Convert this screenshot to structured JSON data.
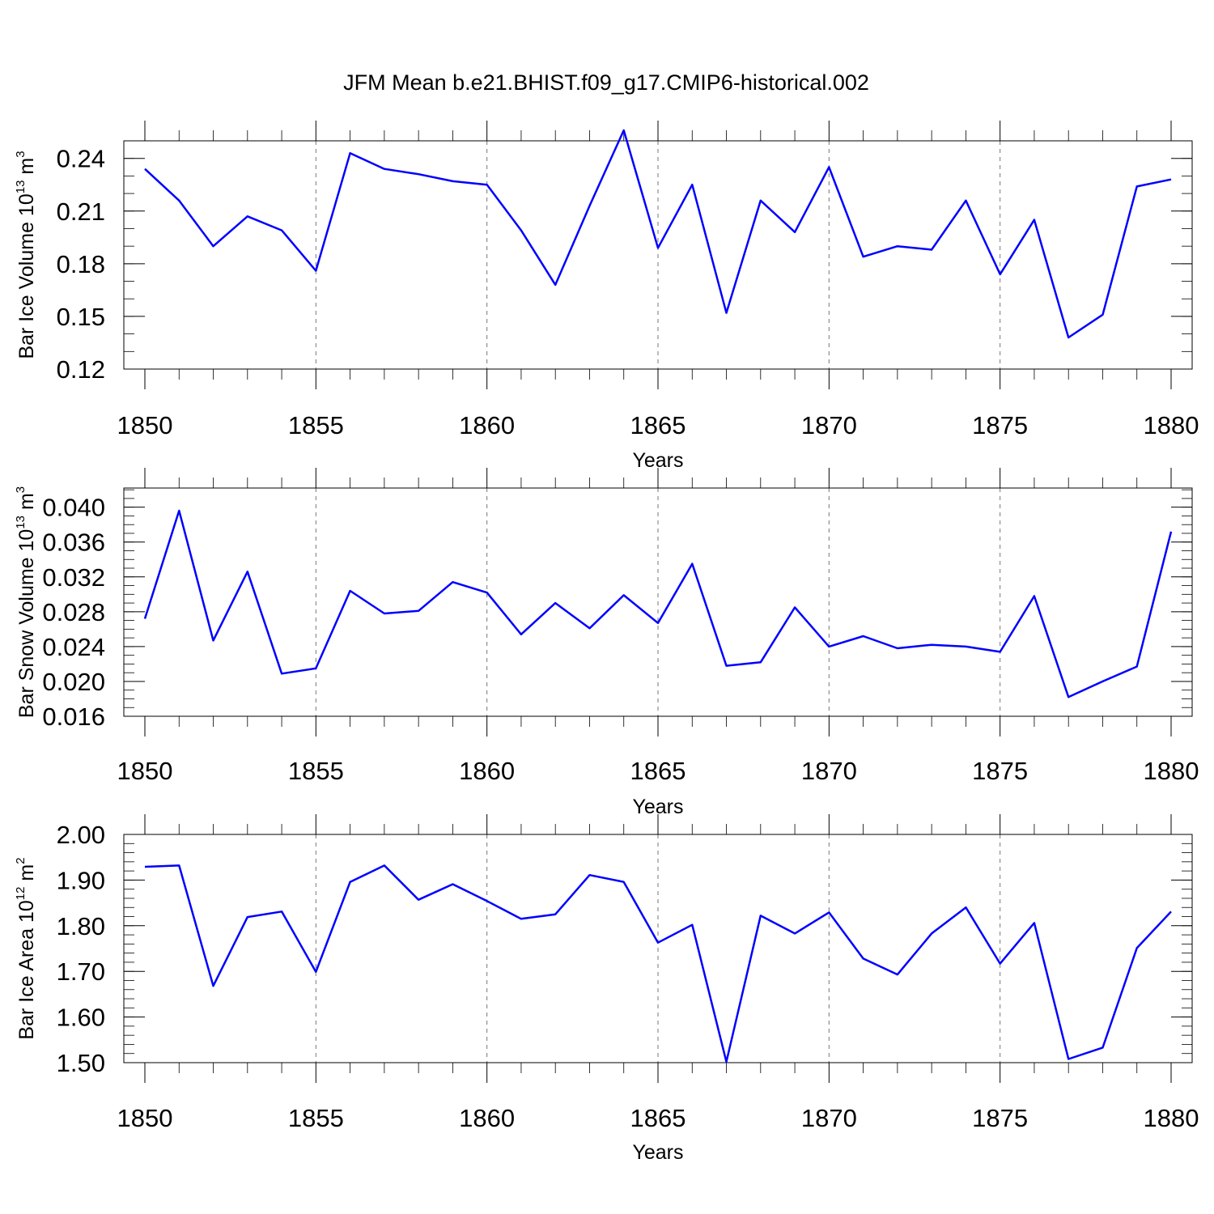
{
  "title": "JFM Mean b.e21.BHIST.f09_g17.CMIP6-historical.002",
  "line_color": "#0000ff",
  "chart_data": [
    {
      "type": "line",
      "ylabel": "Bar Ice Volume 10",
      "ylabel_exp": "13",
      "ylabel_unit": " m",
      "ylabel_unit_exp": "3",
      "xlabel": "Years",
      "xlim": [
        1850,
        1880
      ],
      "ylim": [
        0.12,
        0.25
      ],
      "x_ticks": [
        "1850",
        "1855",
        "1860",
        "1865",
        "1870",
        "1875",
        "1880"
      ],
      "y_ticks": [
        {
          "value": 0.12,
          "label": "0.12"
        },
        {
          "value": 0.15,
          "label": "0.15"
        },
        {
          "value": 0.18,
          "label": "0.18"
        },
        {
          "value": 0.21,
          "label": "0.21"
        },
        {
          "value": 0.24,
          "label": "0.24"
        }
      ],
      "y_minor_step": 0.01,
      "grid": "vertical dashed at major x ticks",
      "x": [
        1850,
        1851,
        1852,
        1853,
        1854,
        1855,
        1856,
        1857,
        1858,
        1859,
        1860,
        1861,
        1862,
        1863,
        1864,
        1865,
        1866,
        1867,
        1868,
        1869,
        1870,
        1871,
        1872,
        1873,
        1874,
        1875,
        1876,
        1877,
        1878,
        1879,
        1880
      ],
      "values": [
        0.234,
        0.216,
        0.19,
        0.207,
        0.199,
        0.176,
        0.243,
        0.234,
        0.231,
        0.227,
        0.225,
        0.199,
        0.168,
        0.213,
        0.256,
        0.189,
        0.225,
        0.152,
        0.216,
        0.198,
        0.235,
        0.184,
        0.19,
        0.188,
        0.216,
        0.174,
        0.205,
        0.138,
        0.151,
        0.224,
        0.228
      ]
    },
    {
      "type": "line",
      "ylabel": "Bar Snow Volume 10",
      "ylabel_exp": "13",
      "ylabel_unit": " m",
      "ylabel_unit_exp": "3",
      "xlabel": "Years",
      "xlim": [
        1850,
        1880
      ],
      "ylim": [
        0.016,
        0.0422
      ],
      "x_ticks": [
        "1850",
        "1855",
        "1860",
        "1865",
        "1870",
        "1875",
        "1880"
      ],
      "y_ticks": [
        {
          "value": 0.016,
          "label": "0.016"
        },
        {
          "value": 0.02,
          "label": "0.020"
        },
        {
          "value": 0.024,
          "label": "0.024"
        },
        {
          "value": 0.028,
          "label": "0.028"
        },
        {
          "value": 0.032,
          "label": "0.032"
        },
        {
          "value": 0.036,
          "label": "0.036"
        },
        {
          "value": 0.04,
          "label": "0.040"
        }
      ],
      "y_minor_step": 0.001,
      "grid": "vertical dashed at major x ticks",
      "x": [
        1850,
        1851,
        1852,
        1853,
        1854,
        1855,
        1856,
        1857,
        1858,
        1859,
        1860,
        1861,
        1862,
        1863,
        1864,
        1865,
        1866,
        1867,
        1868,
        1869,
        1870,
        1871,
        1872,
        1873,
        1874,
        1875,
        1876,
        1877,
        1878,
        1879,
        1880
      ],
      "values": [
        0.0272,
        0.0396,
        0.0247,
        0.0326,
        0.0209,
        0.0215,
        0.0304,
        0.0278,
        0.0281,
        0.0314,
        0.0302,
        0.0254,
        0.029,
        0.0261,
        0.0299,
        0.0267,
        0.0335,
        0.0218,
        0.0222,
        0.0285,
        0.024,
        0.0252,
        0.0238,
        0.0242,
        0.024,
        0.0234,
        0.0298,
        0.0182,
        0.02,
        0.0217,
        0.0372
      ]
    },
    {
      "type": "line",
      "ylabel": "Bar Ice Area 10",
      "ylabel_exp": "12",
      "ylabel_unit": " m",
      "ylabel_unit_exp": "2",
      "xlabel": "Years",
      "xlim": [
        1850,
        1880
      ],
      "ylim": [
        1.5,
        2.0
      ],
      "x_ticks": [
        "1850",
        "1855",
        "1860",
        "1865",
        "1870",
        "1875",
        "1880"
      ],
      "y_ticks": [
        {
          "value": 1.5,
          "label": "1.50"
        },
        {
          "value": 1.6,
          "label": "1.60"
        },
        {
          "value": 1.7,
          "label": "1.70"
        },
        {
          "value": 1.8,
          "label": "1.80"
        },
        {
          "value": 1.9,
          "label": "1.90"
        },
        {
          "value": 2.0,
          "label": "2.00"
        }
      ],
      "y_minor_step": 0.02,
      "grid": "vertical dashed at major x ticks",
      "x": [
        1850,
        1851,
        1852,
        1853,
        1854,
        1855,
        1856,
        1857,
        1858,
        1859,
        1860,
        1861,
        1862,
        1863,
        1864,
        1865,
        1866,
        1867,
        1868,
        1869,
        1870,
        1871,
        1872,
        1873,
        1874,
        1875,
        1876,
        1877,
        1878,
        1879,
        1880
      ],
      "values": [
        1.929,
        1.932,
        1.668,
        1.819,
        1.831,
        1.699,
        1.896,
        1.932,
        1.857,
        1.891,
        1.854,
        1.815,
        1.825,
        1.911,
        1.896,
        1.763,
        1.802,
        1.502,
        1.822,
        1.783,
        1.829,
        1.728,
        1.693,
        1.783,
        1.84,
        1.717,
        1.806,
        1.508,
        1.533,
        1.751,
        1.831
      ]
    }
  ]
}
